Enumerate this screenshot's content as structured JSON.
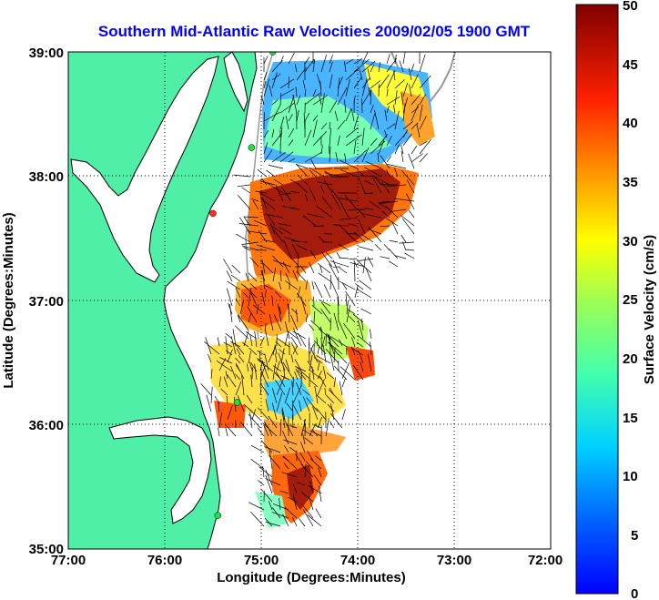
{
  "title": "Southern Mid-Atlantic Raw Velocities 2009/02/05 1900 GMT",
  "xlabel": "Longitude (Degrees:Minutes)",
  "ylabel": "Latitude (Degrees:Minutes)",
  "colorbar_label": "Surface Velocity (cm/s)",
  "x_ticks": [
    "77:00",
    "76:00",
    "75:00",
    "74:00",
    "73:00",
    "72:00"
  ],
  "y_ticks": [
    "39:00",
    "38:00",
    "37:00",
    "36:00",
    "35:00"
  ],
  "colorbar_ticks": [
    "50",
    "45",
    "40",
    "35",
    "30",
    "25",
    "20",
    "15",
    "10",
    "5",
    "0"
  ],
  "colors": {
    "title": "#0000ff",
    "land": "#4fefa8",
    "coastline": "#000000",
    "grid": "#000000"
  },
  "chart_data": {
    "type": "heatmap",
    "title": "Southern Mid-Atlantic Raw Velocities 2009/02/05 1900 GMT",
    "xlabel": "Longitude (Degrees:Minutes)",
    "ylabel": "Latitude (Degrees:Minutes)",
    "xlim": [
      -77,
      -72
    ],
    "ylim": [
      35,
      39
    ],
    "colorbar": {
      "label": "Surface Velocity (cm/s)",
      "range": [
        0,
        50
      ],
      "colormap": "jet"
    },
    "grid": true,
    "stations": [
      {
        "lon": -74.88,
        "lat": 39.0
      },
      {
        "lon": -75.1,
        "lat": 38.23
      },
      {
        "lon": -75.5,
        "lat": 37.7
      },
      {
        "lon": -75.25,
        "lat": 36.18
      },
      {
        "lon": -75.45,
        "lat": 35.27
      }
    ]
  }
}
